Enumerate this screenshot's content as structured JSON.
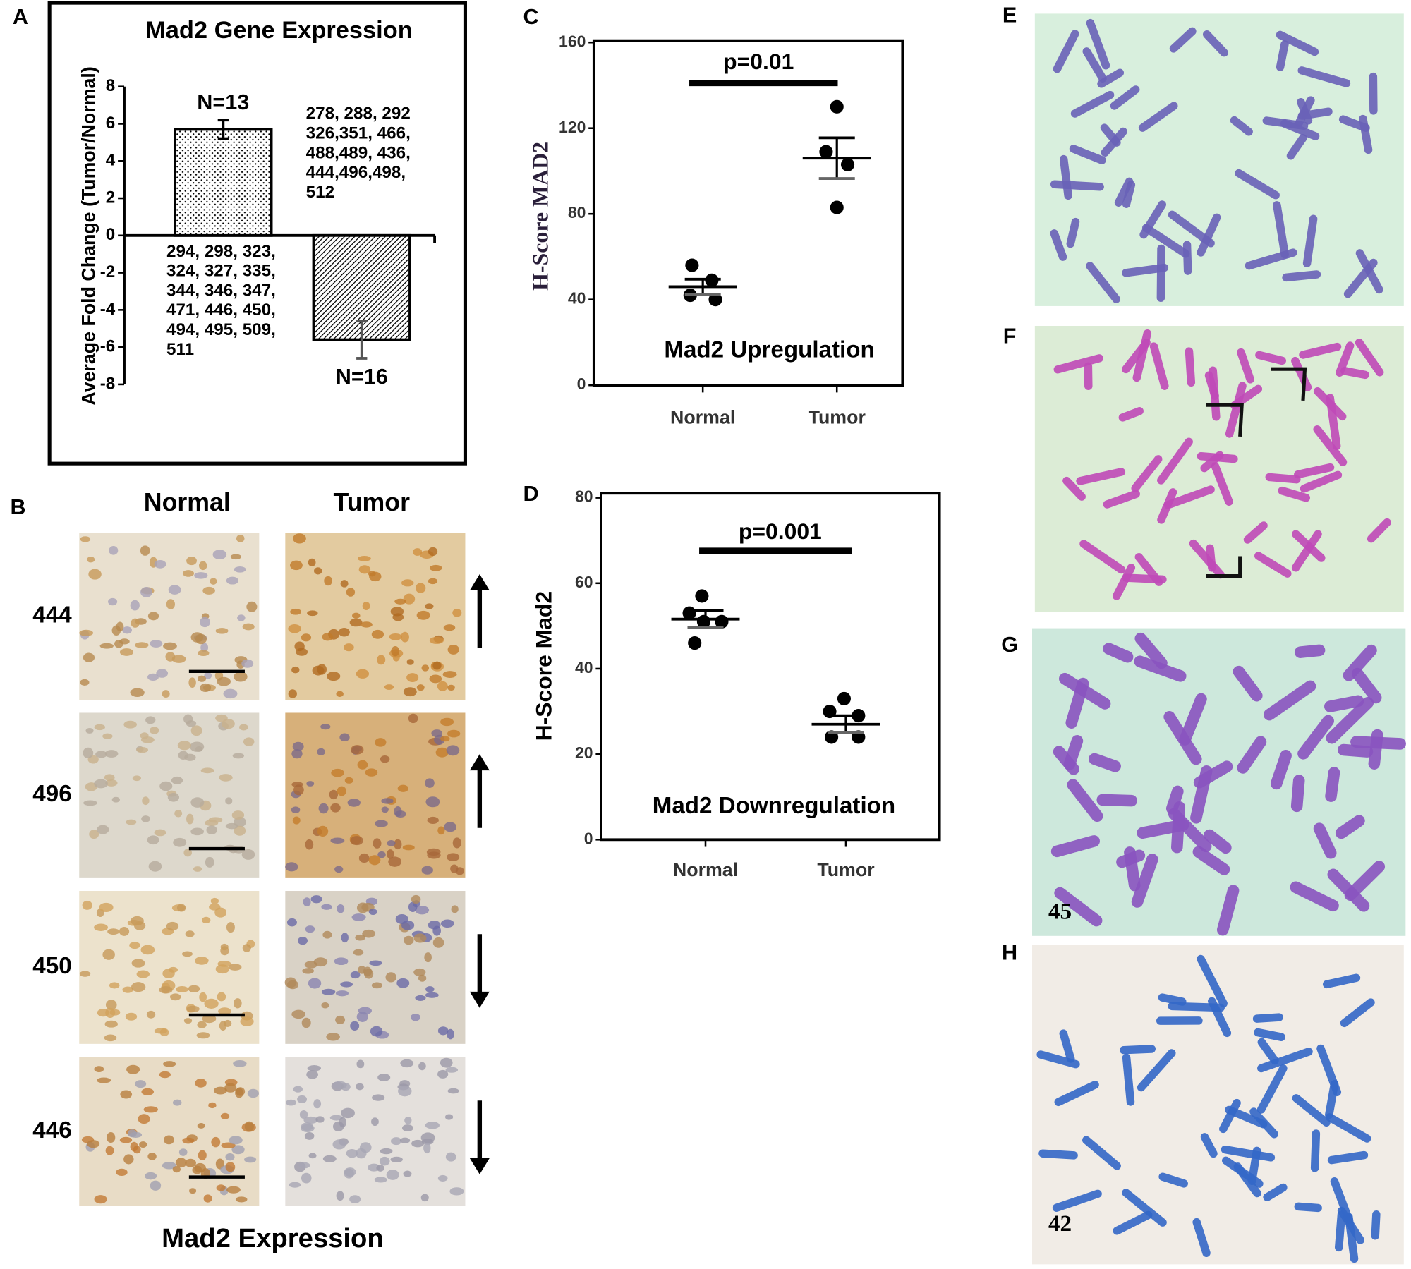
{
  "chart_data": [
    {
      "type": "bar",
      "panel": "A",
      "title": "Mad2 Gene  Expression",
      "y_label": "Average Fold Change (Tumor/Normal)",
      "categories": [
        null,
        null
      ],
      "values": [
        5.7,
        -5.6
      ],
      "errors": [
        0.5,
        1.0
      ],
      "ylim": [
        -8,
        8
      ],
      "yticks": [
        -8,
        -6,
        -4,
        -2,
        0,
        2,
        4,
        6,
        8
      ],
      "bar_labels": [
        "N=13",
        "N=16"
      ],
      "sample_ids": [
        [
          "278, 288, 292",
          "326,351, 466,",
          "488,489, 436,",
          "444,496,498,",
          "512"
        ],
        [
          "294, 298, 323,",
          "324, 327, 335,",
          "344, 346, 347,",
          "471, 446, 450,",
          "494, 495, 509,",
          "511"
        ]
      ]
    },
    {
      "type": "scatter",
      "panel": "C",
      "title": "Mad2 Upregulation",
      "y_label": "H-Score MAD2",
      "categories": [
        "Normal",
        "Tumor"
      ],
      "points": [
        [
          56,
          49,
          42,
          40
        ],
        [
          130,
          109,
          103,
          83
        ]
      ],
      "means": [
        46,
        106
      ],
      "sem": [
        3.5,
        9.5
      ],
      "ylim": [
        0,
        160
      ],
      "yticks": [
        0,
        40,
        80,
        120,
        160
      ],
      "annotation": "p=0.01"
    },
    {
      "type": "scatter",
      "panel": "D",
      "title": "Mad2 Downregulation",
      "y_label": "H-Score Mad2",
      "categories": [
        "Normal",
        "Tumor"
      ],
      "points": [
        [
          57,
          53,
          51,
          51,
          46
        ],
        [
          33,
          30,
          29,
          24,
          24
        ]
      ],
      "means": [
        51.6,
        27
      ],
      "sem": [
        2,
        2
      ],
      "ylim": [
        0,
        80
      ],
      "yticks": [
        0,
        20,
        40,
        60,
        80
      ],
      "annotation": "p=0.001"
    }
  ],
  "figure": {
    "panel_b": {
      "label": "B",
      "columns": [
        "Normal",
        "Tumor"
      ],
      "rows": [
        "444",
        "496",
        "450",
        "446"
      ],
      "caption": "Mad2 Expression"
    },
    "panel_e": {
      "label": "E"
    },
    "panel_f": {
      "label": "F"
    },
    "panel_g": {
      "label": "G",
      "count": "45"
    },
    "panel_h": {
      "label": "H",
      "count": "42"
    }
  }
}
